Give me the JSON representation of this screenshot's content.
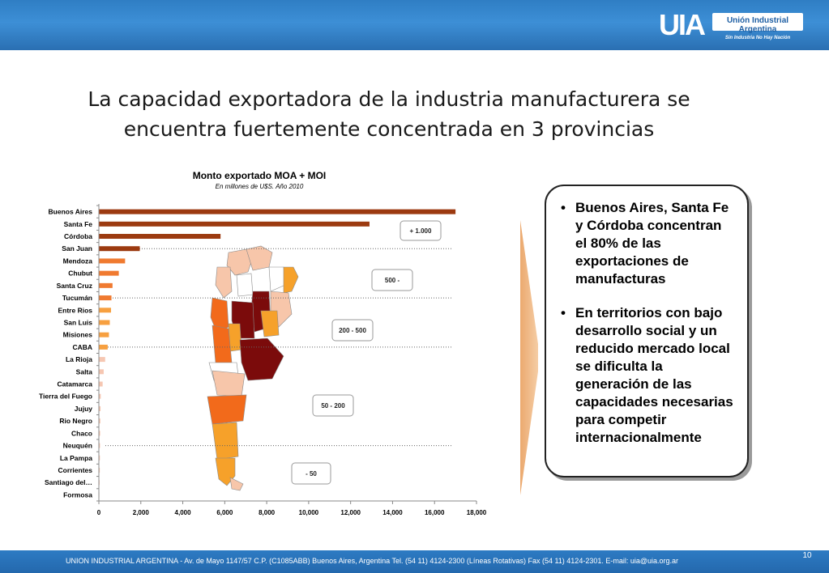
{
  "header": {
    "logo_mark": "UIA",
    "logo_name": "Unión Industrial Argentina",
    "logo_tagline": "Sin Industria No Hay Nación"
  },
  "page_title": "La capacidad exportadora de la industria manufacturera se encuentra fuertemente concentrada en 3 provincias",
  "callout": {
    "bullets": [
      "Buenos Aires, Santa Fe y Córdoba concentran el 80% de las exportaciones de manufacturas",
      "En territorios con bajo desarrollo social y un reducido mercado local se dificulta la generación de las capacidades necesarias para competir internacionalmente"
    ]
  },
  "footer": {
    "text": "UNION INDUSTRIAL ARGENTINA -  Av. de Mayo 1147/57  C.P. (C1085ABB)  Buenos Aires, Argentina Tel. (54 11) 4124-2300   (Líneas Rotativas)  Fax (54 11) 4124-2301.   E-mail: uia@uia.org.ar",
    "page_number": "10"
  },
  "chart_data": {
    "type": "bar",
    "orientation": "horizontal",
    "title": "Monto exportado MOA + MOI",
    "subtitle": "En millones de U$S. Año 2010",
    "categories": [
      "Buenos Aires",
      "Santa Fe",
      "Córdoba",
      "San Juan",
      "Mendoza",
      "Chubut",
      "Santa Cruz",
      "Tucumán",
      "Entre Rios",
      "San Luis",
      "Misiones",
      "CABA",
      "La Rioja",
      "Salta",
      "Catamarca",
      "Tierra del Fuego",
      "Jujuy",
      "Rio Negro",
      "Chaco",
      "Neuquén",
      "La Pampa",
      "Corrientes",
      "Santiago del…",
      "Formosa"
    ],
    "values": [
      17000,
      12900,
      5800,
      1950,
      1250,
      950,
      650,
      600,
      580,
      520,
      480,
      420,
      300,
      230,
      180,
      90,
      80,
      70,
      60,
      55,
      50,
      45,
      35,
      20
    ],
    "colors": [
      "#9c3a10",
      "#9c3a10",
      "#9c3a10",
      "#9c3a10",
      "#f07a30",
      "#f07a30",
      "#f07a30",
      "#f07a30",
      "#f7a040",
      "#f7a040",
      "#f7a040",
      "#f7a040",
      "#f6c7b2",
      "#f6c7b2",
      "#f6c7b2",
      "#f6c7b2",
      "#f6c7b2",
      "#f6c7b2",
      "#f6c7b2",
      "#f6c7b2",
      "#f6c7b2",
      "#f6c7b2",
      "#f6c7b2",
      "#f6c7b2"
    ],
    "xlim": [
      0,
      18000
    ],
    "xticks": [
      "0",
      "2,000",
      "4,000",
      "6,000",
      "8,000",
      "10,000",
      "12,000",
      "14,000",
      "16,000",
      "18,000"
    ],
    "xtick_values": [
      0,
      2000,
      4000,
      6000,
      8000,
      10000,
      12000,
      14000,
      16000,
      18000
    ],
    "range_labels": [
      "+ 1.000",
      "500 -",
      "200 - 500",
      "50 - 200",
      "- 50"
    ],
    "grid": false
  },
  "map": {
    "colors": {
      "dark": "#7b0b0b",
      "orange": "#f26a1b",
      "amber": "#f6a12a",
      "light": "#f7c6aa",
      "white": "#ffffff"
    }
  }
}
